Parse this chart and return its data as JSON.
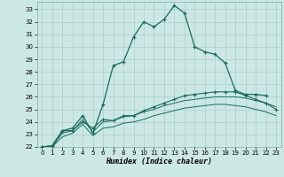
{
  "xlabel": "Humidex (Indice chaleur)",
  "bg_color": "#cce8e4",
  "grid_color": "#aacfcb",
  "line_color": "#1a6b5e",
  "xlim": [
    -0.5,
    23.5
  ],
  "ylim": [
    22,
    33.6
  ],
  "xticks": [
    0,
    1,
    2,
    3,
    4,
    5,
    6,
    7,
    8,
    9,
    10,
    11,
    12,
    13,
    14,
    15,
    16,
    17,
    18,
    19,
    20,
    21,
    22,
    23
  ],
  "yticks": [
    22,
    23,
    24,
    25,
    26,
    27,
    28,
    29,
    30,
    31,
    32,
    33
  ],
  "line1_x": [
    0,
    1,
    2,
    3,
    4,
    5,
    6,
    7,
    8,
    9,
    10,
    11,
    12,
    13,
    14,
    15,
    16,
    17,
    18,
    19,
    20,
    21,
    22
  ],
  "line1_y": [
    22.0,
    22.1,
    23.3,
    23.5,
    24.5,
    23.1,
    25.4,
    28.5,
    28.8,
    30.8,
    32.0,
    31.6,
    32.2,
    33.3,
    32.7,
    30.0,
    29.6,
    29.4,
    28.7,
    26.5,
    26.2,
    26.2,
    26.1
  ],
  "line2_x": [
    0,
    1,
    2,
    3,
    4,
    5,
    6,
    7,
    8,
    9,
    10,
    11,
    12,
    13,
    14,
    15,
    16,
    17,
    18,
    19,
    20,
    21,
    22,
    23
  ],
  "line2_y": [
    22.0,
    22.1,
    23.3,
    23.3,
    24.0,
    23.5,
    24.2,
    24.1,
    24.5,
    24.5,
    24.9,
    25.2,
    25.5,
    25.8,
    26.1,
    26.2,
    26.3,
    26.4,
    26.4,
    26.4,
    26.1,
    25.8,
    25.5,
    25.0
  ],
  "line3_x": [
    0,
    1,
    2,
    3,
    4,
    5,
    6,
    7,
    8,
    9,
    10,
    11,
    12,
    13,
    14,
    15,
    16,
    17,
    18,
    19,
    20,
    21,
    22,
    23
  ],
  "line3_y": [
    22.0,
    22.0,
    23.1,
    23.3,
    24.2,
    23.2,
    24.0,
    24.1,
    24.4,
    24.5,
    24.8,
    25.0,
    25.3,
    25.5,
    25.7,
    25.8,
    25.9,
    26.0,
    26.0,
    26.0,
    25.9,
    25.7,
    25.5,
    25.2
  ],
  "line4_x": [
    0,
    1,
    2,
    3,
    4,
    5,
    6,
    7,
    8,
    9,
    10,
    11,
    12,
    13,
    14,
    15,
    16,
    17,
    18,
    19,
    20,
    21,
    22,
    23
  ],
  "line4_y": [
    22.0,
    22.0,
    22.8,
    23.1,
    23.8,
    22.9,
    23.5,
    23.6,
    23.9,
    24.0,
    24.2,
    24.5,
    24.7,
    24.9,
    25.1,
    25.2,
    25.3,
    25.4,
    25.4,
    25.3,
    25.2,
    25.0,
    24.8,
    24.5
  ]
}
